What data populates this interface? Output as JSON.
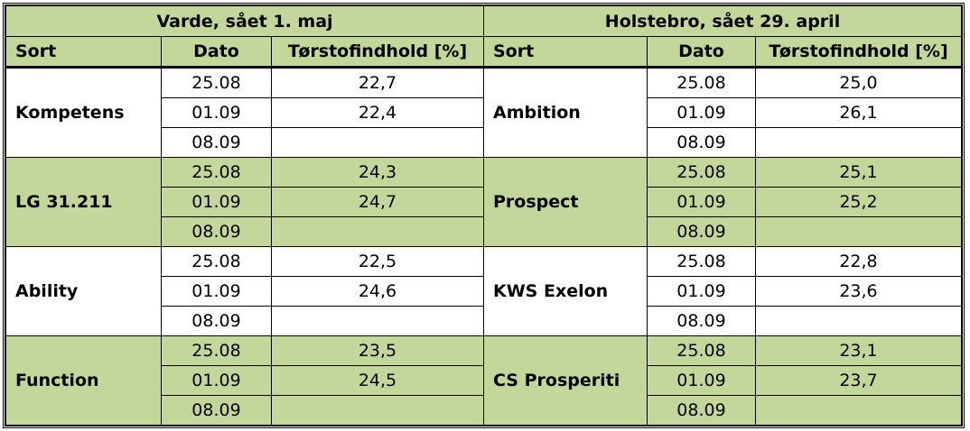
{
  "headers": {
    "left_title": "Varde, sået 1. maj",
    "right_title": "Holstebro, sået 29. april",
    "sort": "Sort",
    "dato": "Dato",
    "ts": "Tørstofindhold [%]"
  },
  "colors": {
    "green": "#c4d79b"
  },
  "groups": [
    {
      "left": {
        "sort": "Kompetens",
        "rows": [
          [
            "25.08",
            "22,7"
          ],
          [
            "01.09",
            "22,4"
          ],
          [
            "08.09",
            ""
          ]
        ]
      },
      "right": {
        "sort": "Ambition",
        "rows": [
          [
            "25.08",
            "25,0"
          ],
          [
            "01.09",
            "26,1"
          ],
          [
            "08.09",
            ""
          ]
        ]
      }
    },
    {
      "left": {
        "sort": "LG 31.211",
        "rows": [
          [
            "25.08",
            "24,3"
          ],
          [
            "01.09",
            "24,7"
          ],
          [
            "08.09",
            ""
          ]
        ]
      },
      "right": {
        "sort": "Prospect",
        "rows": [
          [
            "25.08",
            "25,1"
          ],
          [
            "01.09",
            "25,2"
          ],
          [
            "08.09",
            ""
          ]
        ]
      }
    },
    {
      "left": {
        "sort": "Ability",
        "rows": [
          [
            "25.08",
            "22,5"
          ],
          [
            "01.09",
            "24,6"
          ],
          [
            "08.09",
            ""
          ]
        ]
      },
      "right": {
        "sort": "KWS Exelon",
        "rows": [
          [
            "25.08",
            "22,8"
          ],
          [
            "01.09",
            "23,6"
          ],
          [
            "08.09",
            ""
          ]
        ]
      }
    },
    {
      "left": {
        "sort": "Function",
        "rows": [
          [
            "25.08",
            "23,5"
          ],
          [
            "01.09",
            "24,5"
          ],
          [
            "08.09",
            ""
          ]
        ]
      },
      "right": {
        "sort": "CS Prosperiti",
        "rows": [
          [
            "25.08",
            "23,1"
          ],
          [
            "01.09",
            "23,7"
          ],
          [
            "08.09",
            ""
          ]
        ]
      }
    }
  ]
}
